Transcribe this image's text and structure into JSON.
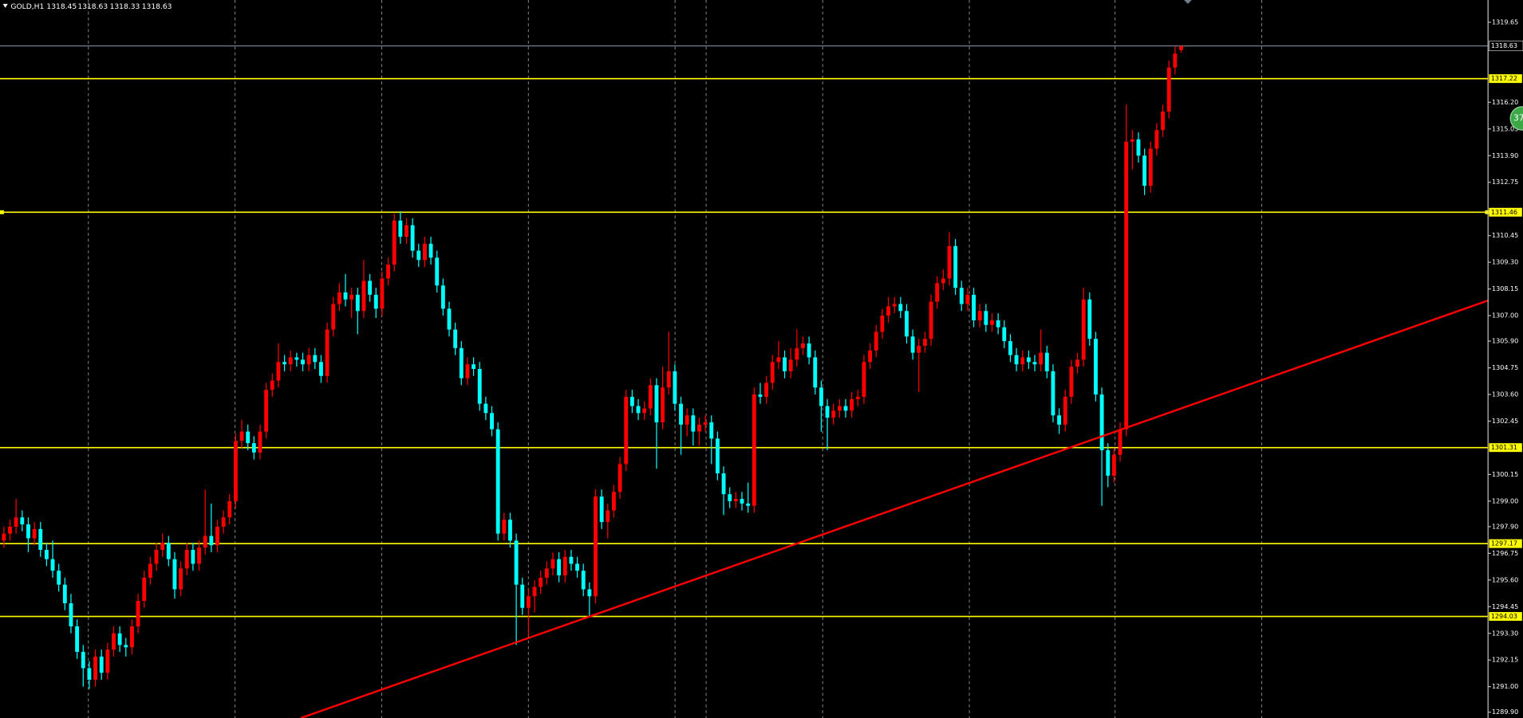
{
  "chart_data": {
    "type": "candlestick",
    "title": "GOLD,H1",
    "open": [
      1297.3,
      1297.6,
      1297.9,
      1298.3,
      1298.0,
      1297.4,
      1297.8,
      1296.9,
      1296.5,
      1296.0,
      1295.4,
      1294.6,
      1293.6,
      1292.5,
      1291.8,
      1291.3,
      1292.3,
      1291.6,
      1292.6,
      1293.3,
      1292.8,
      1292.7,
      1293.6,
      1294.7,
      1295.7,
      1296.3,
      1296.9,
      1297.2,
      1296.5,
      1295.2,
      1296.1,
      1296.9,
      1296.3,
      1297.0,
      1297.5,
      1297.1,
      1297.9,
      1298.3,
      1299.0,
      1301.6,
      1302.0,
      1301.5,
      1301.1,
      1302.0,
      1303.8,
      1304.2,
      1305.0,
      1304.9,
      1305.2,
      1305.1,
      1304.9,
      1305.3,
      1305.0,
      1304.4,
      1306.4,
      1307.5,
      1308.0,
      1307.7,
      1307.9,
      1307.2,
      1308.5,
      1307.9,
      1307.3,
      1308.6,
      1309.2,
      1311.1,
      1310.4,
      1310.9,
      1309.8,
      1309.4,
      1310.1,
      1309.5,
      1308.3,
      1307.3,
      1306.4,
      1305.6,
      1304.3,
      1304.9,
      1304.7,
      1303.2,
      1302.8,
      1302.1,
      1297.6,
      1298.2,
      1297.3,
      1295.4,
      1294.4,
      1294.9,
      1295.3,
      1295.7,
      1296.1,
      1296.5,
      1295.8,
      1296.6,
      1296.3,
      1296.0,
      1295.2,
      1294.9,
      1299.2,
      1298.1,
      1298.6,
      1299.4,
      1300.6,
      1303.5,
      1303.1,
      1302.8,
      1303.0,
      1304.0,
      1302.4,
      1303.9,
      1304.6,
      1303.2,
      1302.3,
      1302.7,
      1302.0,
      1302.3,
      1302.4,
      1301.7,
      1300.2,
      1299.3,
      1299.0,
      1299.1,
      1298.9,
      1298.8,
      1303.6,
      1303.5,
      1304.1,
      1305.0,
      1305.2,
      1304.6,
      1305.1,
      1305.6,
      1305.8,
      1305.2,
      1303.9,
      1303.1,
      1302.6,
      1302.9,
      1303.1,
      1302.9,
      1303.4,
      1303.5,
      1305.0,
      1305.5,
      1306.3,
      1307.0,
      1307.4,
      1307.5,
      1307.2,
      1306.1,
      1305.4,
      1305.7,
      1306.0,
      1307.6,
      1308.4,
      1308.6,
      1310.0,
      1308.2,
      1307.5,
      1307.9,
      1306.8,
      1307.2,
      1306.6,
      1306.8,
      1306.5,
      1305.9,
      1305.3,
      1304.9,
      1305.2,
      1305.0,
      1304.9,
      1305.4,
      1304.6,
      1302.7,
      1302.3,
      1303.5,
      1304.8,
      1305.1,
      1307.7,
      1306.0,
      1303.6,
      1301.2,
      1300.1,
      1301.0,
      1302.1,
      1314.5,
      1314.6,
      1313.9,
      1312.6,
      1314.2,
      1315.0,
      1315.8,
      1317.7,
      1318.45
    ],
    "high": [
      1297.9,
      1298.2,
      1299.1,
      1298.6,
      1298.3,
      1298.1,
      1298.1,
      1297.2,
      1297.3,
      1296.3,
      1295.7,
      1295.0,
      1293.9,
      1292.8,
      1292.1,
      1292.6,
      1292.6,
      1292.9,
      1293.6,
      1293.6,
      1293.1,
      1293.9,
      1295.0,
      1296.0,
      1296.6,
      1297.2,
      1297.6,
      1297.5,
      1296.8,
      1296.4,
      1297.2,
      1297.2,
      1297.3,
      1299.5,
      1298.9,
      1298.2,
      1298.6,
      1299.3,
      1301.9,
      1302.5,
      1302.3,
      1301.8,
      1302.3,
      1304.1,
      1304.5,
      1305.8,
      1305.3,
      1305.5,
      1305.4,
      1305.4,
      1305.6,
      1305.6,
      1305.3,
      1306.7,
      1307.8,
      1308.4,
      1308.8,
      1308.2,
      1308.2,
      1309.4,
      1308.8,
      1308.2,
      1308.9,
      1309.5,
      1311.4,
      1311.5,
      1311.2,
      1311.2,
      1310.1,
      1310.4,
      1310.4,
      1309.8,
      1308.6,
      1307.6,
      1306.7,
      1305.9,
      1305.2,
      1305.2,
      1305.0,
      1303.5,
      1303.1,
      1302.4,
      1298.5,
      1298.5,
      1297.6,
      1295.7,
      1295.2,
      1295.6,
      1296.0,
      1296.4,
      1296.8,
      1296.8,
      1296.9,
      1296.9,
      1296.6,
      1296.3,
      1295.5,
      1299.5,
      1299.5,
      1298.9,
      1299.7,
      1300.9,
      1303.8,
      1303.8,
      1303.4,
      1303.3,
      1304.3,
      1304.3,
      1304.8,
      1306.3,
      1304.9,
      1303.5,
      1303.0,
      1303.0,
      1302.6,
      1302.7,
      1302.7,
      1302.0,
      1300.5,
      1299.6,
      1299.4,
      1299.4,
      1299.8,
      1303.9,
      1304.1,
      1304.4,
      1305.3,
      1305.9,
      1305.5,
      1305.6,
      1306.4,
      1306.1,
      1306.1,
      1305.5,
      1304.2,
      1303.4,
      1303.2,
      1303.4,
      1303.4,
      1303.7,
      1303.8,
      1305.3,
      1305.8,
      1306.6,
      1307.3,
      1307.8,
      1307.8,
      1307.8,
      1307.5,
      1306.4,
      1306.0,
      1306.3,
      1307.9,
      1308.7,
      1309.0,
      1310.6,
      1310.3,
      1308.5,
      1308.2,
      1308.2,
      1307.5,
      1307.5,
      1307.1,
      1307.1,
      1306.8,
      1306.2,
      1305.6,
      1305.5,
      1305.5,
      1305.3,
      1306.4,
      1305.7,
      1304.9,
      1303.0,
      1303.8,
      1305.1,
      1305.4,
      1308.2,
      1308.0,
      1306.3,
      1303.9,
      1301.5,
      1301.3,
      1302.4,
      1316.1,
      1315.0,
      1314.9,
      1314.2,
      1314.5,
      1315.3,
      1316.1,
      1318.0,
      1318.6,
      1318.63
    ],
    "low": [
      1297.0,
      1297.3,
      1297.6,
      1297.7,
      1296.8,
      1297.1,
      1296.6,
      1296.2,
      1295.7,
      1295.1,
      1294.3,
      1293.3,
      1292.2,
      1291.0,
      1290.9,
      1291.0,
      1291.3,
      1291.3,
      1292.3,
      1292.5,
      1292.3,
      1292.4,
      1293.3,
      1294.4,
      1295.4,
      1296.0,
      1296.6,
      1296.2,
      1294.8,
      1294.9,
      1295.8,
      1296.0,
      1296.0,
      1296.7,
      1296.8,
      1296.8,
      1297.6,
      1298.0,
      1298.7,
      1301.3,
      1301.2,
      1300.8,
      1300.8,
      1301.7,
      1303.5,
      1303.9,
      1304.6,
      1304.6,
      1304.8,
      1304.6,
      1304.6,
      1304.7,
      1304.1,
      1304.1,
      1306.1,
      1307.2,
      1307.4,
      1306.9,
      1306.2,
      1306.9,
      1307.6,
      1306.9,
      1307.0,
      1308.3,
      1308.9,
      1310.1,
      1310.1,
      1309.5,
      1309.1,
      1309.1,
      1309.2,
      1308.0,
      1307.0,
      1306.1,
      1305.3,
      1304.0,
      1304.0,
      1304.4,
      1302.9,
      1302.5,
      1301.8,
      1297.3,
      1297.3,
      1297.0,
      1292.8,
      1294.1,
      1293.2,
      1294.2,
      1295.0,
      1295.4,
      1295.8,
      1295.5,
      1295.5,
      1296.0,
      1295.7,
      1294.9,
      1294.0,
      1294.6,
      1297.8,
      1297.4,
      1298.3,
      1299.1,
      1300.3,
      1302.8,
      1302.5,
      1302.5,
      1302.7,
      1300.4,
      1302.1,
      1303.6,
      1302.9,
      1301.0,
      1301.8,
      1301.4,
      1301.4,
      1302.0,
      1300.6,
      1299.9,
      1298.4,
      1298.7,
      1298.7,
      1298.6,
      1298.5,
      1298.5,
      1303.2,
      1303.2,
      1303.8,
      1304.7,
      1304.3,
      1304.3,
      1304.8,
      1305.3,
      1304.9,
      1303.6,
      1302.0,
      1301.2,
      1302.3,
      1302.6,
      1302.6,
      1302.6,
      1303.1,
      1303.2,
      1304.7,
      1305.2,
      1306.0,
      1306.7,
      1307.1,
      1306.9,
      1305.8,
      1305.1,
      1303.7,
      1305.4,
      1305.7,
      1307.3,
      1308.1,
      1308.3,
      1307.9,
      1307.2,
      1307.2,
      1306.5,
      1306.5,
      1306.3,
      1306.3,
      1306.2,
      1305.6,
      1305.0,
      1304.6,
      1304.6,
      1304.7,
      1304.6,
      1304.6,
      1304.3,
      1302.4,
      1301.9,
      1302.0,
      1303.2,
      1304.5,
      1304.8,
      1305.7,
      1303.3,
      1298.8,
      1299.6,
      1299.8,
      1300.7,
      1301.8,
      1313.3,
      1313.6,
      1312.2,
      1312.3,
      1313.9,
      1314.7,
      1315.5,
      1317.4,
      1318.33
    ],
    "close": [
      1297.6,
      1297.9,
      1298.3,
      1298.0,
      1297.4,
      1297.8,
      1296.9,
      1296.5,
      1296.0,
      1295.4,
      1294.6,
      1293.6,
      1292.5,
      1291.8,
      1291.3,
      1292.3,
      1291.6,
      1292.6,
      1293.3,
      1292.8,
      1292.7,
      1293.6,
      1294.7,
      1295.7,
      1296.3,
      1296.9,
      1297.2,
      1296.5,
      1295.2,
      1296.1,
      1296.9,
      1296.3,
      1297.0,
      1297.5,
      1297.1,
      1297.9,
      1298.3,
      1299.0,
      1301.6,
      1302.0,
      1301.5,
      1301.1,
      1302.0,
      1303.8,
      1304.2,
      1305.0,
      1304.9,
      1305.2,
      1305.1,
      1304.9,
      1305.3,
      1305.0,
      1304.4,
      1306.4,
      1307.5,
      1308.0,
      1307.7,
      1307.9,
      1307.2,
      1308.5,
      1307.9,
      1307.3,
      1308.6,
      1309.2,
      1311.1,
      1310.4,
      1310.9,
      1309.8,
      1309.4,
      1310.1,
      1309.5,
      1308.3,
      1307.3,
      1306.4,
      1305.6,
      1304.3,
      1304.9,
      1304.7,
      1303.2,
      1302.8,
      1302.1,
      1297.6,
      1298.2,
      1297.3,
      1295.4,
      1294.4,
      1294.9,
      1295.3,
      1295.7,
      1296.1,
      1296.5,
      1295.8,
      1296.6,
      1296.3,
      1296.0,
      1295.2,
      1294.9,
      1299.2,
      1298.1,
      1298.6,
      1299.4,
      1300.6,
      1303.5,
      1303.1,
      1302.8,
      1303.0,
      1304.0,
      1302.4,
      1303.9,
      1304.6,
      1303.2,
      1302.3,
      1302.7,
      1302.0,
      1302.3,
      1302.4,
      1301.7,
      1300.2,
      1299.3,
      1299.0,
      1299.1,
      1298.9,
      1298.8,
      1303.6,
      1303.5,
      1304.1,
      1305.0,
      1305.2,
      1304.6,
      1305.1,
      1305.6,
      1305.8,
      1305.2,
      1303.9,
      1303.1,
      1302.6,
      1302.9,
      1303.1,
      1302.9,
      1303.4,
      1303.5,
      1305.0,
      1305.5,
      1306.3,
      1307.0,
      1307.4,
      1307.5,
      1307.2,
      1306.1,
      1305.4,
      1305.7,
      1306.0,
      1307.6,
      1308.4,
      1308.6,
      1310.0,
      1308.2,
      1307.5,
      1307.9,
      1306.8,
      1307.2,
      1306.6,
      1306.8,
      1306.5,
      1305.9,
      1305.3,
      1304.9,
      1305.2,
      1305.0,
      1304.9,
      1305.4,
      1304.6,
      1302.7,
      1302.3,
      1303.5,
      1304.8,
      1305.1,
      1307.7,
      1306.0,
      1303.6,
      1301.2,
      1300.1,
      1301.0,
      1302.1,
      1314.5,
      1314.6,
      1313.9,
      1312.6,
      1314.2,
      1315.0,
      1315.8,
      1317.7,
      1318.3,
      1318.63
    ],
    "up_color": "#ff0000",
    "down_color": "#00ffff",
    "ylim": [
      1289.65,
      1320.61
    ],
    "yticks": [
      {
        "value": 1319.65,
        "label": "1319.65"
      },
      {
        "value": 1316.2,
        "label": "1316.20"
      },
      {
        "value": 1315.05,
        "label": "1315.05"
      },
      {
        "value": 1313.9,
        "label": "1313.90"
      },
      {
        "value": 1312.75,
        "label": "1312.75"
      },
      {
        "value": 1310.45,
        "label": "1310.45"
      },
      {
        "value": 1309.3,
        "label": "1309.30"
      },
      {
        "value": 1308.15,
        "label": "1308.15"
      },
      {
        "value": 1307,
        "label": "1307.00"
      },
      {
        "value": 1305.9,
        "label": "1305.90"
      },
      {
        "value": 1304.75,
        "label": "1304.75"
      },
      {
        "value": 1303.6,
        "label": "1303.60"
      },
      {
        "value": 1302.45,
        "label": "1302.45"
      },
      {
        "value": 1300.15,
        "label": "1300.15"
      },
      {
        "value": 1299,
        "label": "1299.00"
      },
      {
        "value": 1297.9,
        "label": "1297.90"
      },
      {
        "value": 1296.75,
        "label": "1296.75"
      },
      {
        "value": 1295.6,
        "label": "1295.60"
      },
      {
        "value": 1294.45,
        "label": "1294.45"
      },
      {
        "value": 1293.3,
        "label": "1293.30"
      },
      {
        "value": 1292.15,
        "label": "1292.15"
      },
      {
        "value": 1291,
        "label": "1291.00"
      },
      {
        "value": 1289.9,
        "label": "1289.90"
      }
    ],
    "levels": [
      1317.22,
      1311.46,
      1301.31,
      1297.17,
      1294.03
    ],
    "level_color": "#ffff00",
    "bid": 1318.63,
    "bid_color": "#6f7f8f",
    "trendline": {
      "x": [
        48.7,
        243.3
      ],
      "y": [
        1289.65,
        1307.65
      ],
      "color": "#ff0000"
    },
    "grid": true
  },
  "badge": "37"
}
